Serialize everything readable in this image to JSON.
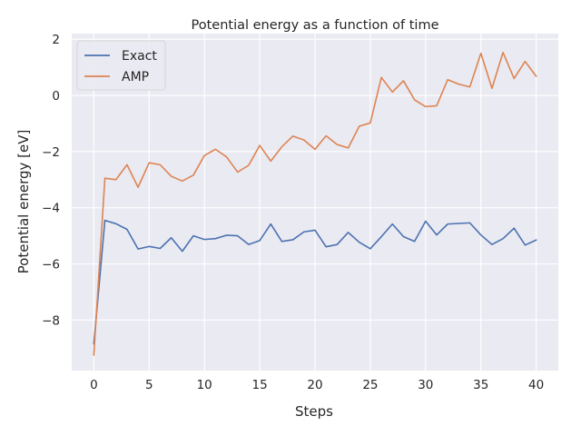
{
  "chart_data": {
    "type": "line",
    "title": "Potential energy as a function of time",
    "xlabel": "Steps",
    "ylabel": "Potential energy [eV]",
    "xlim": [
      -2,
      42
    ],
    "ylim": [
      -9.8,
      2.2
    ],
    "xticks": [
      0,
      5,
      10,
      15,
      20,
      25,
      30,
      35,
      40
    ],
    "yticks": [
      2,
      0,
      -2,
      -4,
      -6,
      -8
    ],
    "ytick_labels": [
      "2",
      "0",
      "−2",
      "−4",
      "−6",
      "−8"
    ],
    "grid": true,
    "legend_placement": "top-left",
    "background": "#eaeaf2",
    "x": [
      0,
      1,
      2,
      3,
      4,
      5,
      6,
      7,
      8,
      9,
      10,
      11,
      12,
      13,
      14,
      15,
      16,
      17,
      18,
      19,
      20,
      21,
      22,
      23,
      24,
      25,
      26,
      27,
      28,
      29,
      30,
      31,
      32,
      33,
      34,
      35,
      36,
      37,
      38,
      39,
      40
    ],
    "series": [
      {
        "name": "Exact",
        "color": "#4c72b0",
        "values": [
          -8.85,
          -4.45,
          -4.57,
          -4.77,
          -5.47,
          -5.38,
          -5.45,
          -5.07,
          -5.55,
          -5.0,
          -5.13,
          -5.1,
          -4.98,
          -5.0,
          -5.31,
          -5.17,
          -4.58,
          -5.2,
          -5.14,
          -4.86,
          -4.8,
          -5.39,
          -5.31,
          -4.88,
          -5.23,
          -5.46,
          -5.03,
          -4.58,
          -5.03,
          -5.2,
          -4.48,
          -4.97,
          -4.58,
          -4.56,
          -4.54,
          -4.97,
          -5.31,
          -5.1,
          -4.73,
          -5.33,
          -5.15
        ]
      },
      {
        "name": "AMP",
        "color": "#dd8452",
        "values": [
          -9.25,
          -2.95,
          -3.0,
          -2.47,
          -3.27,
          -2.4,
          -2.47,
          -2.88,
          -3.05,
          -2.84,
          -2.14,
          -1.92,
          -2.19,
          -2.73,
          -2.49,
          -1.78,
          -2.34,
          -1.83,
          -1.45,
          -1.59,
          -1.92,
          -1.44,
          -1.75,
          -1.87,
          -1.1,
          -0.98,
          0.64,
          0.12,
          0.52,
          -0.16,
          -0.4,
          -0.37,
          0.56,
          0.4,
          0.3,
          1.5,
          0.25,
          1.53,
          0.6,
          1.21,
          0.68
        ]
      }
    ]
  }
}
